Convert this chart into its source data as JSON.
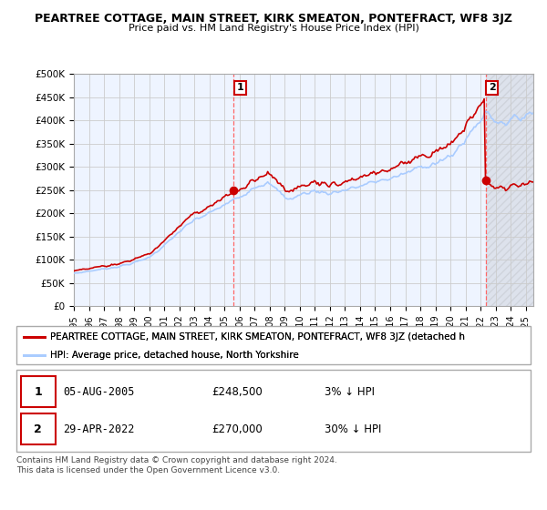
{
  "title": "PEARTREE COTTAGE, MAIN STREET, KIRK SMEATON, PONTEFRACT, WF8 3JZ",
  "subtitle": "Price paid vs. HM Land Registry's House Price Index (HPI)",
  "ylim": [
    0,
    500000
  ],
  "yticks": [
    0,
    50000,
    100000,
    150000,
    200000,
    250000,
    300000,
    350000,
    400000,
    450000,
    500000
  ],
  "ytick_labels": [
    "£0",
    "£50K",
    "£100K",
    "£150K",
    "£200K",
    "£250K",
    "£300K",
    "£350K",
    "£400K",
    "£450K",
    "£500K"
  ],
  "hpi_color": "#aaccff",
  "price_color": "#cc0000",
  "marker_color": "#cc0000",
  "background_color": "#ffffff",
  "grid_color": "#cccccc",
  "legend_entry1": "PEARTREE COTTAGE, MAIN STREET, KIRK SMEATON, PONTEFRACT, WF8 3JZ (detached h",
  "legend_entry2": "HPI: Average price, detached house, North Yorkshire",
  "footer": "Contains HM Land Registry data © Crown copyright and database right 2024.\nThis data is licensed under the Open Government Licence v3.0.",
  "purchase1_year": 2005.59,
  "purchase2_year": 2022.33,
  "purchase1_value": 248500,
  "purchase2_value": 270000,
  "xlim_start": 1995.0,
  "xlim_end": 2025.5,
  "hatch_start": 2022.33
}
